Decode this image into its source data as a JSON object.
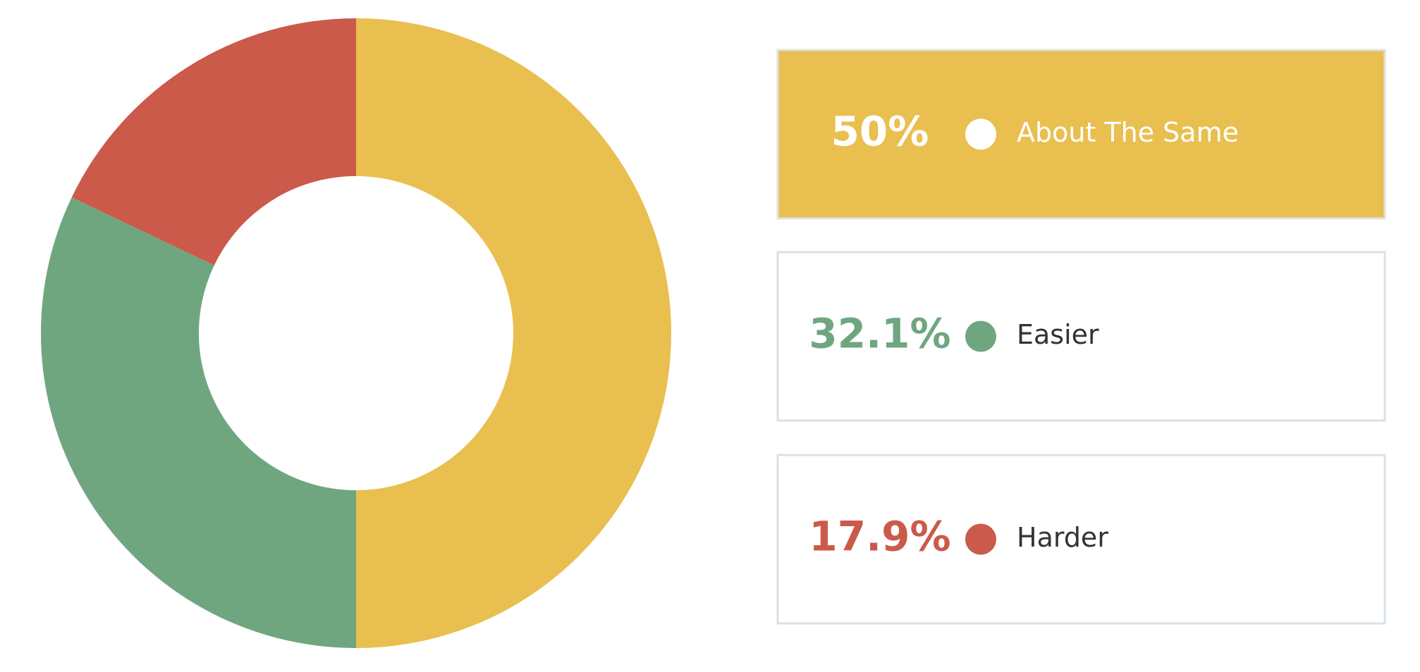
{
  "chart_data": {
    "type": "pie",
    "categories": [
      "About The Same",
      "Easier",
      "Harder"
    ],
    "values": [
      50,
      32.1,
      17.9
    ],
    "value_labels": [
      "50%",
      "32.1%",
      "17.9%"
    ],
    "colors": [
      "#e9bf4f",
      "#6fa680",
      "#cb5a4a"
    ]
  }
}
